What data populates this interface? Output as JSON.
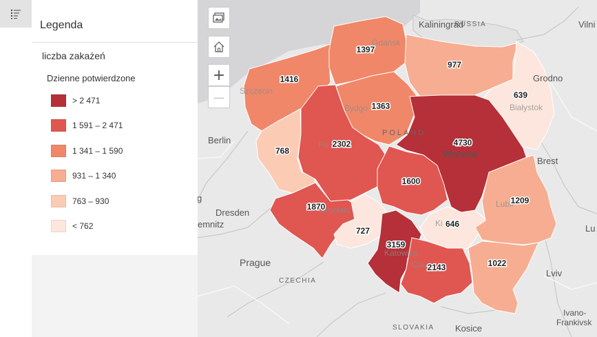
{
  "legend": {
    "title": "Legenda",
    "layer_name": "liczba zakażeń",
    "field_name": "Dzienne potwierdzone",
    "classes": [
      {
        "label": "> 2 471",
        "color": "#b53038"
      },
      {
        "label": "1 591 – 2 471",
        "color": "#e05650"
      },
      {
        "label": "1 341 – 1 590",
        "color": "#f08769"
      },
      {
        "label": "931 – 1 340",
        "color": "#f7ad91"
      },
      {
        "label": "763 – 930",
        "color": "#fbcbb4"
      },
      {
        "label": "< 762",
        "color": "#fde6dd"
      }
    ]
  },
  "map_controls": {
    "basemap_icon": "basemap-gallery-icon",
    "home_icon": "home-icon",
    "zoom_in": "+",
    "zoom_out": "—"
  },
  "map_labels": {
    "kaliningrad": "Kaliningrad",
    "russia": "RUSSIA",
    "vilnius": "Vilni",
    "grodno": "Grodno",
    "berlin": "Berlin",
    "warsaw": "Warsaw",
    "poland": "POLAND",
    "brest": "Brest",
    "dresden": "Dresden",
    "chemnitz": "emnitz",
    "prague": "Prague",
    "czechia": "CZECHIA",
    "lviv": "Lviv",
    "ivano": "Ivano-",
    "frankivsk": "Frankivsk",
    "slovakia": "SLOVAKIA",
    "kosice": "Kosice",
    "szczecin": "Szczecin",
    "gdansk": "Gdańsk",
    "bydgoszcz": "Bydgo",
    "bialystok": "Białystok",
    "poznan": "Po",
    "wroclaw": "Wrocław",
    "katowice": "Katowice",
    "krakow": "Cra",
    "kielce": "Ki",
    "lublin": "Lubli",
    "lu_edge": "Lu",
    "g_edge": "g"
  },
  "regions": [
    {
      "id": "zachodniopomorskie",
      "value": "1416",
      "color": "#f08769"
    },
    {
      "id": "pomorskie",
      "value": "1397",
      "color": "#f08769"
    },
    {
      "id": "warminsko-mazurskie",
      "value": "977",
      "color": "#f7ad91"
    },
    {
      "id": "podlaskie",
      "value": "639",
      "color": "#fde6dd"
    },
    {
      "id": "kujawsko-pomorskie",
      "value": "1363",
      "color": "#f08769"
    },
    {
      "id": "lubuskie",
      "value": "768",
      "color": "#fbcbb4"
    },
    {
      "id": "wielkopolskie",
      "value": "2302",
      "color": "#e05650"
    },
    {
      "id": "mazowieckie",
      "value": "4730",
      "color": "#b53038"
    },
    {
      "id": "lodzkie",
      "value": "1600",
      "color": "#e05650"
    },
    {
      "id": "dolnoslaskie",
      "value": "1870",
      "color": "#e05650"
    },
    {
      "id": "opolskie",
      "value": "727",
      "color": "#fde6dd"
    },
    {
      "id": "slaskie",
      "value": "3159",
      "color": "#b53038"
    },
    {
      "id": "swietokrzyskie",
      "value": "646",
      "color": "#fde6dd"
    },
    {
      "id": "lubelskie",
      "value": "1209",
      "color": "#f7ad91"
    },
    {
      "id": "malopolskie",
      "value": "2143",
      "color": "#e05650"
    },
    {
      "id": "podkarpackie",
      "value": "1022",
      "color": "#f7ad91"
    }
  ]
}
